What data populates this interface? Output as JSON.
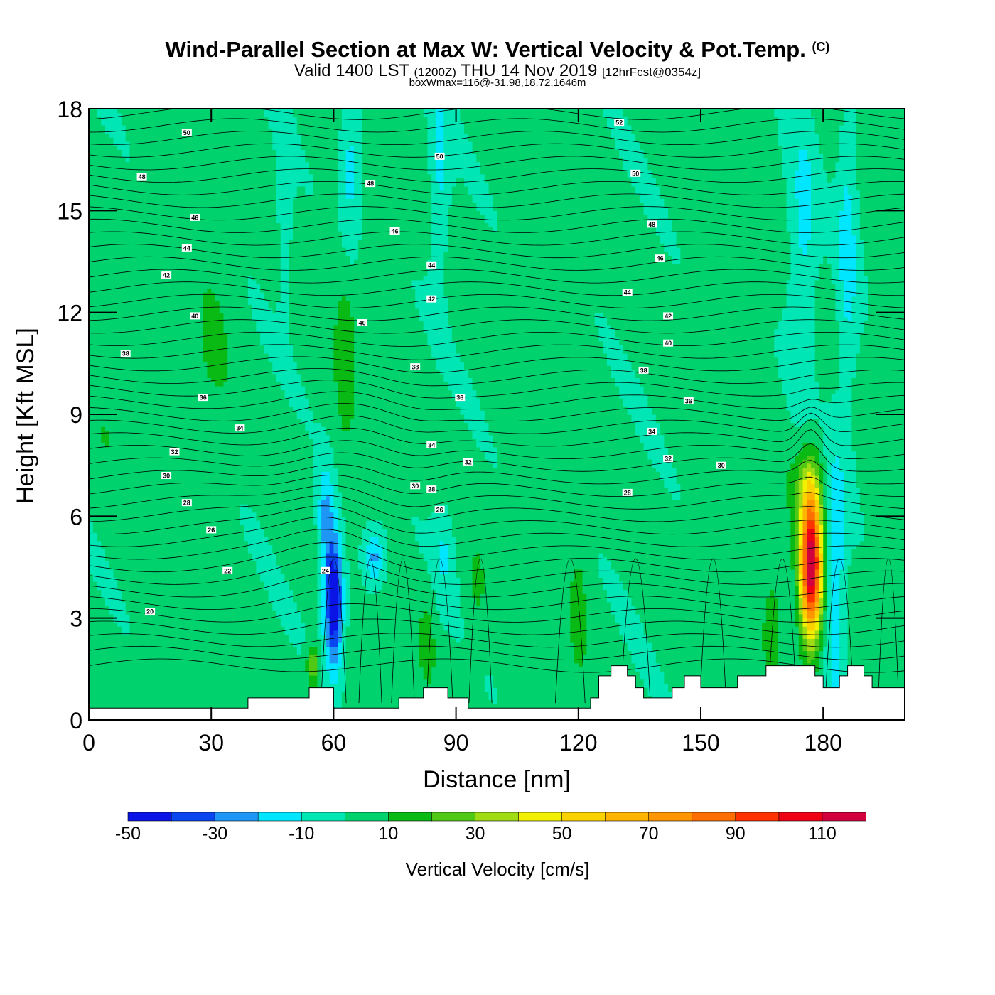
{
  "header": {
    "title": "Wind-Parallel Section at Max W: Vertical Velocity & Pot.Temp.",
    "title_mark": "(C)",
    "subtitle_a": "Valid 1400 LST",
    "subtitle_b": "(1200Z)",
    "subtitle_c": "THU 14 Nov 2019",
    "subtitle_d": "[12hrFcst@0354z]",
    "subtitle2": "boxWmax=116@-31.98,18.72,1646m"
  },
  "chart_data": {
    "type": "heatmap",
    "xlabel": "Distance [nm]",
    "ylabel": "Height [Kft MSL]",
    "xlim": [
      0,
      200
    ],
    "ylim": [
      0,
      18
    ],
    "x_ticks": [
      "0",
      "30",
      "60",
      "90",
      "120",
      "150",
      "180"
    ],
    "y_ticks": [
      "0",
      "3",
      "6",
      "9",
      "12",
      "15",
      "18"
    ],
    "colorbar": {
      "title": "Vertical Velocity [cm/s]",
      "levels": [
        -50,
        -40,
        -30,
        -20,
        -10,
        0,
        10,
        20,
        30,
        40,
        50,
        60,
        70,
        80,
        90,
        100,
        110,
        120
      ],
      "colors": [
        "#0a14e6",
        "#0a46f0",
        "#1e96f5",
        "#00e6ff",
        "#00e6b4",
        "#00d26e",
        "#0aba14",
        "#50c814",
        "#a0dc14",
        "#f0f000",
        "#fad200",
        "#ffb400",
        "#ff9600",
        "#ff6e00",
        "#ff3200",
        "#f00014",
        "#d2003c"
      ],
      "labels": [
        "-50",
        "-30",
        "-10",
        "10",
        "30",
        "50",
        "70",
        "90",
        "110"
      ]
    },
    "max_w": {
      "value": 116,
      "x": 177,
      "z": 4.6
    },
    "theta_contours": [
      {
        "value": "20",
        "lx": 15,
        "lz": 3.2
      },
      {
        "value": "22",
        "lx": 34,
        "lz": 4.4
      },
      {
        "value": "24",
        "lx": 58,
        "lz": 4.4
      },
      {
        "value": "26",
        "lx": 30,
        "lz": 5.6
      },
      {
        "value": "26",
        "lx": 86,
        "lz": 6.2
      },
      {
        "value": "28",
        "lx": 24,
        "lz": 6.4
      },
      {
        "value": "28",
        "lx": 84,
        "lz": 6.8
      },
      {
        "value": "28",
        "lx": 132,
        "lz": 6.7
      },
      {
        "value": "30",
        "lx": 19,
        "lz": 7.2
      },
      {
        "value": "30",
        "lx": 80,
        "lz": 6.9
      },
      {
        "value": "30",
        "lx": 155,
        "lz": 7.5
      },
      {
        "value": "32",
        "lx": 21,
        "lz": 7.9
      },
      {
        "value": "32",
        "lx": 93,
        "lz": 7.6
      },
      {
        "value": "32",
        "lx": 142,
        "lz": 7.7
      },
      {
        "value": "34",
        "lx": 37,
        "lz": 8.6
      },
      {
        "value": "34",
        "lx": 84,
        "lz": 8.1
      },
      {
        "value": "34",
        "lx": 138,
        "lz": 8.5
      },
      {
        "value": "36",
        "lx": 28,
        "lz": 9.5
      },
      {
        "value": "36",
        "lx": 91,
        "lz": 9.5
      },
      {
        "value": "36",
        "lx": 147,
        "lz": 9.4
      },
      {
        "value": "38",
        "lx": 9,
        "lz": 10.8
      },
      {
        "value": "38",
        "lx": 80,
        "lz": 10.4
      },
      {
        "value": "38",
        "lx": 136,
        "lz": 10.3
      },
      {
        "value": "40",
        "lx": 26,
        "lz": 11.9
      },
      {
        "value": "40",
        "lx": 67,
        "lz": 11.7
      },
      {
        "value": "40",
        "lx": 142,
        "lz": 11.1
      },
      {
        "value": "42",
        "lx": 19,
        "lz": 13.1
      },
      {
        "value": "42",
        "lx": 84,
        "lz": 12.4
      },
      {
        "value": "42",
        "lx": 142,
        "lz": 11.9
      },
      {
        "value": "44",
        "lx": 24,
        "lz": 13.9
      },
      {
        "value": "44",
        "lx": 84,
        "lz": 13.4
      },
      {
        "value": "44",
        "lx": 132,
        "lz": 12.6
      },
      {
        "value": "46",
        "lx": 26,
        "lz": 14.8
      },
      {
        "value": "46",
        "lx": 75,
        "lz": 14.4
      },
      {
        "value": "46",
        "lx": 140,
        "lz": 13.6
      },
      {
        "value": "48",
        "lx": 13,
        "lz": 16.0
      },
      {
        "value": "48",
        "lx": 69,
        "lz": 15.8
      },
      {
        "value": "48",
        "lx": 138,
        "lz": 14.6
      },
      {
        "value": "50",
        "lx": 24,
        "lz": 17.3
      },
      {
        "value": "50",
        "lx": 86,
        "lz": 16.6
      },
      {
        "value": "50",
        "lx": 134,
        "lz": 16.1
      },
      {
        "value": "52",
        "lx": 130,
        "lz": 17.6
      }
    ],
    "terrain": [
      [
        0,
        0.35
      ],
      [
        39,
        0.35
      ],
      [
        39,
        0.65
      ],
      [
        54,
        0.65
      ],
      [
        54,
        0.95
      ],
      [
        60,
        0.95
      ],
      [
        60,
        0.35
      ],
      [
        76,
        0.35
      ],
      [
        76,
        0.65
      ],
      [
        82,
        0.65
      ],
      [
        82,
        0.95
      ],
      [
        88,
        0.95
      ],
      [
        88,
        0.65
      ],
      [
        93,
        0.65
      ],
      [
        93,
        0.35
      ],
      [
        123,
        0.35
      ],
      [
        123,
        0.65
      ],
      [
        125,
        0.65
      ],
      [
        125,
        1.3
      ],
      [
        128,
        1.3
      ],
      [
        128,
        1.6
      ],
      [
        132,
        1.6
      ],
      [
        132,
        1.3
      ],
      [
        134,
        1.3
      ],
      [
        134,
        0.95
      ],
      [
        136,
        0.95
      ],
      [
        136,
        0.65
      ],
      [
        143,
        0.65
      ],
      [
        143,
        0.95
      ],
      [
        146,
        0.95
      ],
      [
        146,
        1.3
      ],
      [
        150,
        1.3
      ],
      [
        150,
        0.95
      ],
      [
        159,
        0.95
      ],
      [
        159,
        1.3
      ],
      [
        166,
        1.3
      ],
      [
        166,
        1.6
      ],
      [
        178,
        1.6
      ],
      [
        178,
        1.3
      ],
      [
        180,
        1.3
      ],
      [
        180,
        0.95
      ],
      [
        184,
        0.95
      ],
      [
        184,
        1.3
      ],
      [
        186,
        1.3
      ],
      [
        186,
        1.6
      ],
      [
        190,
        1.6
      ],
      [
        190,
        1.3
      ],
      [
        192,
        1.3
      ],
      [
        192,
        0.95
      ],
      [
        200,
        0.95
      ]
    ]
  }
}
